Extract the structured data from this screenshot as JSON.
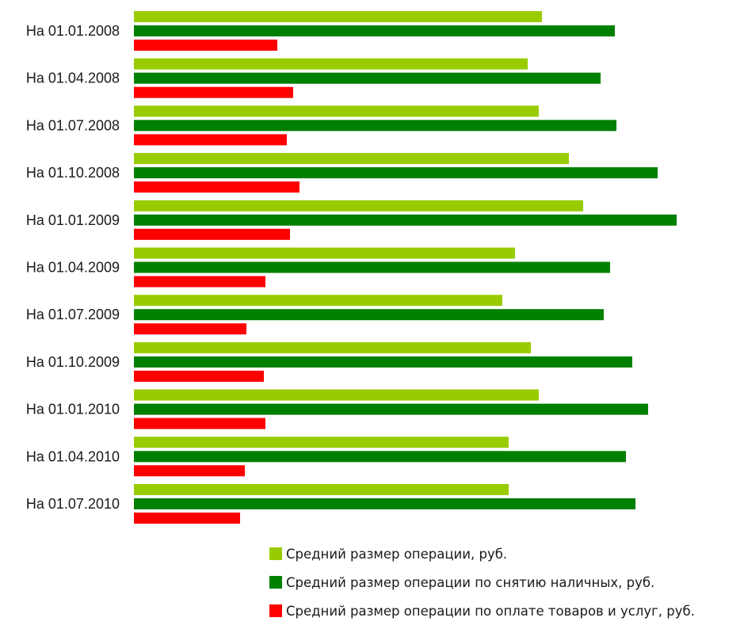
{
  "chart_data": {
    "type": "bar",
    "orientation": "horizontal",
    "categories": [
      "На 01.01.2008",
      "На 01.04.2008",
      "На 01.07.2008",
      "На 01.10.2008",
      "На 01.01.2009",
      "На 01.04.2009",
      "На 01.07.2009",
      "На 01.10.2009",
      "На 01.01.2010",
      "На 01.04.2010",
      "На 01.07.2010"
    ],
    "series": [
      {
        "name": "Средний размер операции, руб.",
        "color": "#99cc00",
        "values": [
          515,
          497,
          511,
          549,
          567,
          481,
          465,
          501,
          511,
          473,
          473
        ]
      },
      {
        "name": "Средний размер операции по снятию наличных, руб.",
        "color": "#008000",
        "values": [
          607,
          589,
          609,
          661,
          685,
          601,
          593,
          629,
          649,
          621,
          633
        ]
      },
      {
        "name": "Средний размер операции по оплате товаров и услуг, руб.",
        "color": "#ff0000",
        "values": [
          181,
          201,
          193,
          209,
          197,
          166,
          142,
          164,
          166,
          140,
          134
        ]
      }
    ],
    "xlim": [
      0,
      770
    ],
    "grid": false,
    "axis_ticks_shown": false,
    "legend_position": "bottom"
  }
}
